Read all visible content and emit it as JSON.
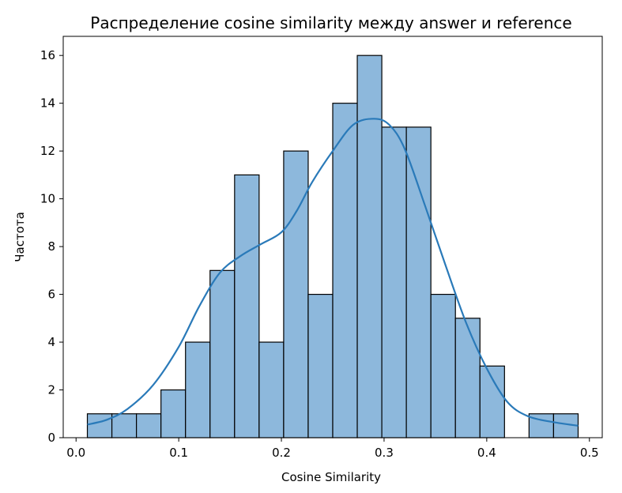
{
  "chart_data": {
    "type": "bar",
    "title": "Распределение cosine similarity между answer и reference",
    "xlabel": "Cosine Similarity",
    "ylabel": "Частота",
    "xlim": [
      -0.0125,
      0.5125
    ],
    "ylim": [
      0,
      16.8
    ],
    "xticks": [
      0.0,
      0.1,
      0.2,
      0.3,
      0.4,
      0.5
    ],
    "xtick_labels": [
      "0.0",
      "0.1",
      "0.2",
      "0.3",
      "0.4",
      "0.5"
    ],
    "yticks": [
      0,
      2,
      4,
      6,
      8,
      10,
      12,
      14,
      16
    ],
    "ytick_labels": [
      "0",
      "2",
      "4",
      "6",
      "8",
      "10",
      "12",
      "14",
      "16"
    ],
    "bin_edges": [
      0.011,
      0.0349,
      0.0588,
      0.0827,
      0.1066,
      0.1305,
      0.1544,
      0.1783,
      0.2022,
      0.2261,
      0.25,
      0.2739,
      0.2978,
      0.3217,
      0.3456,
      0.3695,
      0.3934,
      0.4173,
      0.4412,
      0.4651,
      0.489
    ],
    "counts": [
      1,
      1,
      1,
      2,
      4,
      7,
      11,
      4,
      12,
      6,
      14,
      16,
      13,
      13,
      6,
      5,
      3,
      0,
      1,
      1
    ],
    "kde": {
      "x": [
        0.011,
        0.03,
        0.05,
        0.075,
        0.1,
        0.12,
        0.14,
        0.16,
        0.18,
        0.2,
        0.215,
        0.23,
        0.25,
        0.27,
        0.29,
        0.305,
        0.32,
        0.34,
        0.36,
        0.38,
        0.4,
        0.42,
        0.44,
        0.465,
        0.489
      ],
      "y": [
        0.55,
        0.75,
        1.2,
        2.2,
        3.8,
        5.5,
        6.9,
        7.6,
        8.1,
        8.6,
        9.5,
        10.7,
        12.0,
        13.1,
        13.35,
        13.1,
        12.1,
        9.7,
        7.2,
        4.8,
        2.9,
        1.5,
        0.9,
        0.65,
        0.5
      ]
    },
    "colors": {
      "bar_fill": "#8db8dc",
      "bar_edge": "#000000",
      "kde_line": "#2a7ab9"
    },
    "grid": false,
    "legend": "none"
  }
}
